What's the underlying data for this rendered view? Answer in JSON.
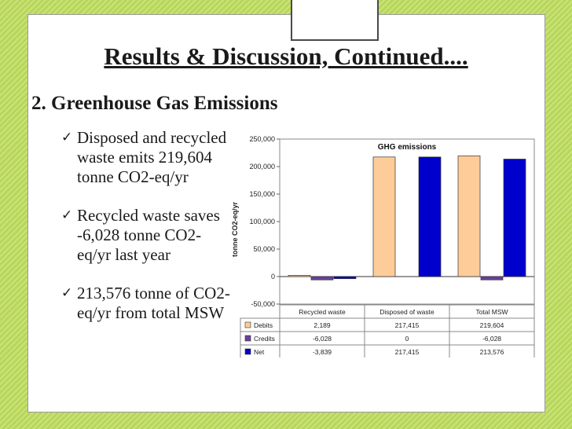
{
  "slide": {
    "title": "Results & Discussion, Continued....",
    "subtitle": "2. Greenhouse Gas Emissions",
    "bullets": [
      {
        "text": "Disposed and recycled waste emits 219,604 tonne CO2-eq/yr"
      },
      {
        "text": "Recycled waste saves -6,028 tonne CO2-eq/yr last year"
      },
      {
        "text": "213,576 tonne of CO2-eq/yr from total MSW"
      }
    ],
    "bullet_icon": "checkmark-icon"
  },
  "colors": {
    "debits": "#fdcc99",
    "credits": "#6b3fa0",
    "net": "#0000cc",
    "stripes": "#c9e37a"
  },
  "chart_data": {
    "type": "bar",
    "title": "GHG emissions",
    "ylabel": "tonne CO2-eq/yr",
    "ylim": [
      -50000,
      250000
    ],
    "yticks": [
      "250,000",
      "200,000",
      "150,000",
      "100,000",
      "50,000",
      "0",
      "-50,000"
    ],
    "ytick_values": [
      250000,
      200000,
      150000,
      100000,
      50000,
      0,
      -50000
    ],
    "categories": [
      "Recycled waste",
      "Disposed of waste",
      "Total MSW"
    ],
    "series": [
      {
        "name": "Debits",
        "values": [
          2189,
          217415,
          219604
        ],
        "labels": [
          "2,189",
          "217,415",
          "219,604"
        ]
      },
      {
        "name": "Credits",
        "values": [
          -6028,
          0,
          -6028
        ],
        "labels": [
          "-6,028",
          "0",
          "-6,028"
        ]
      },
      {
        "name": "Net",
        "values": [
          -3839,
          217415,
          213576
        ],
        "labels": [
          "-3,839",
          "217,415",
          "213,576"
        ]
      }
    ]
  }
}
